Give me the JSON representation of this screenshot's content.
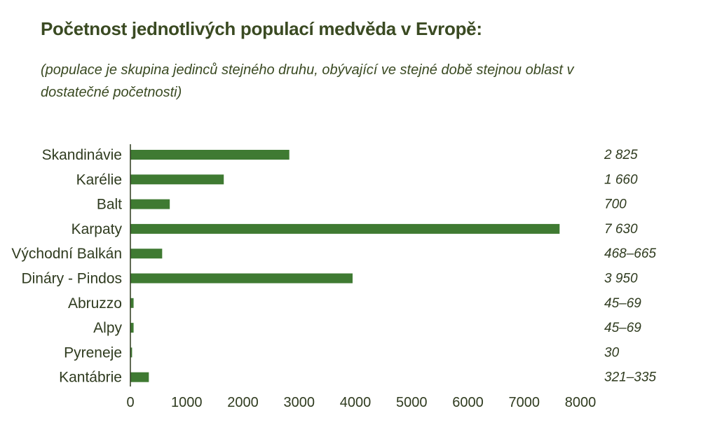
{
  "title": "Početnost jednotlivých populací medvěda v Evropě:",
  "subtitle": "(populace je skupina jedinců stejného druhu, obývající ve stejné době stejnou oblast v dostatečné početnosti)",
  "chart_data": {
    "type": "bar",
    "orientation": "horizontal",
    "categories": [
      "Skandinávie",
      "Karélie",
      "Balt",
      "Karpaty",
      "Východní Balkán",
      "Dináry - Pindos",
      "Abruzzo",
      "Alpy",
      "Pyreneje",
      "Kantábrie"
    ],
    "values": [
      2825,
      1660,
      700,
      7630,
      565,
      3950,
      57,
      57,
      30,
      328
    ],
    "value_labels": [
      "2 825",
      "1 660",
      "700",
      "7 630",
      "468–665",
      "3 950",
      "45–69",
      "45–69",
      "30",
      "321–335"
    ],
    "xlim": [
      0,
      8000
    ],
    "xticks": [
      0,
      1000,
      2000,
      3000,
      4000,
      5000,
      6000,
      7000,
      8000
    ],
    "grid": false,
    "bar_color": "#3f7a32"
  }
}
